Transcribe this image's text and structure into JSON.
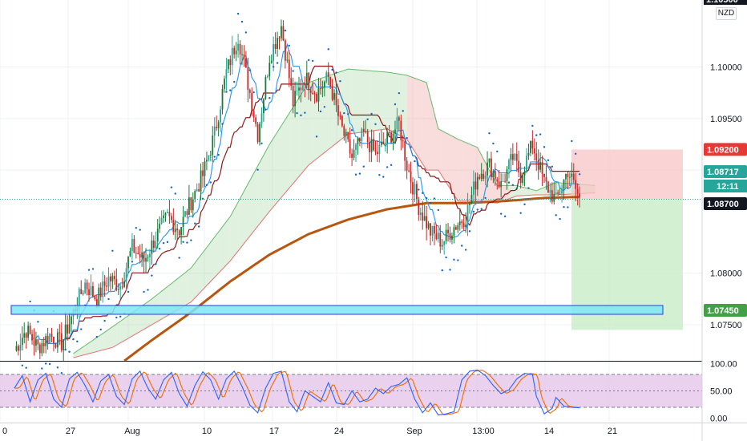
{
  "currency_badge": "NZD",
  "colors": {
    "up_candle": "#26a69a",
    "up_candle_dark": "#1b7a3a",
    "down_candle": "#c62828",
    "ema200": "#b8560f",
    "psar": "#1565c0",
    "tenkan": "#2196f3",
    "kijun": "#8b1a1a",
    "kumo_bull": "#a5d6a7",
    "kumo_bear": "#ef9a9a",
    "support_zone": "#7fe6f5",
    "stop_zone": "#f8c6c6",
    "target_zone": "#c8ecc8",
    "stoch_fill": "#e1bee7",
    "stoch_k": "#2962ff",
    "stoch_d": "#ef6c00"
  },
  "price_axis": {
    "ticks": [
      "1.10000",
      "1.09500",
      "1.09000",
      "1.08000",
      "1.07500"
    ],
    "tick_values": [
      1.1,
      1.095,
      1.09,
      1.08,
      1.075
    ],
    "top_partial_label": "1.10500",
    "labels": {
      "stop": {
        "text": "1.09200",
        "value": 1.092,
        "color": "#e53935"
      },
      "last": {
        "text": "1.08717",
        "value": 1.08717,
        "color": "#26a69a"
      },
      "countdown": {
        "text": "12:11"
      },
      "entry": {
        "text": "1.08700",
        "value": 1.087,
        "color": "#131722"
      },
      "target": {
        "text": "1.07450",
        "value": 1.0745,
        "color": "#43a047"
      }
    }
  },
  "osc_axis": {
    "ticks": [
      "100.00",
      "50.00",
      "0.00"
    ],
    "tick_values": [
      100,
      50,
      0
    ]
  },
  "time_axis": {
    "labels": [
      "0",
      "27",
      "Aug",
      "10",
      "17",
      "24",
      "Sep",
      "13:00",
      "14",
      "21"
    ]
  },
  "chart_data": {
    "type": "candlestick",
    "title": "",
    "symbol_currency": "NZD",
    "ylim": [
      1.0715,
      1.1065
    ],
    "x_labels": [
      "0",
      "27",
      "Aug",
      "10",
      "17",
      "24",
      "Sep",
      "13:00",
      "14",
      "21"
    ],
    "candles_note": "4-hour style OHLC candles, generated to match the visible trend",
    "price_path": [
      [
        0,
        1.0725
      ],
      [
        6,
        1.0745
      ],
      [
        12,
        1.0728
      ],
      [
        18,
        1.074
      ],
      [
        24,
        1.0732
      ],
      [
        30,
        1.0762
      ],
      [
        36,
        1.079
      ],
      [
        42,
        1.0775
      ],
      [
        48,
        1.0795
      ],
      [
        54,
        1.0788
      ],
      [
        60,
        1.0825
      ],
      [
        66,
        1.0812
      ],
      [
        72,
        1.0835
      ],
      [
        78,
        1.0855
      ],
      [
        84,
        1.0842
      ],
      [
        90,
        1.087
      ],
      [
        96,
        1.0895
      ],
      [
        102,
        1.0935
      ],
      [
        108,
        1.0995
      ],
      [
        114,
        1.103
      ],
      [
        120,
        1.0975
      ],
      [
        124,
        1.0935
      ],
      [
        130,
        1.101
      ],
      [
        136,
        1.104
      ],
      [
        142,
        1.0965
      ],
      [
        148,
        1.099
      ],
      [
        154,
        1.0975
      ],
      [
        160,
        1.099
      ],
      [
        166,
        1.0945
      ],
      [
        172,
        1.0912
      ],
      [
        178,
        1.0935
      ],
      [
        184,
        1.0915
      ],
      [
        190,
        1.093
      ],
      [
        196,
        1.0945
      ],
      [
        200,
        1.0905
      ],
      [
        206,
        1.0865
      ],
      [
        212,
        1.084
      ],
      [
        218,
        1.083
      ],
      [
        224,
        1.0845
      ],
      [
        230,
        1.0855
      ],
      [
        236,
        1.0895
      ],
      [
        242,
        1.0905
      ],
      [
        248,
        1.0885
      ],
      [
        254,
        1.0912
      ],
      [
        258,
        1.0895
      ],
      [
        264,
        1.0925
      ],
      [
        270,
        1.0888
      ],
      [
        276,
        1.087
      ],
      [
        282,
        1.09
      ],
      [
        288,
        1.0872
      ]
    ],
    "ema200": [
      [
        56,
        1.0715
      ],
      [
        70,
        1.0735
      ],
      [
        90,
        1.0762
      ],
      [
        110,
        1.0792
      ],
      [
        130,
        1.0818
      ],
      [
        150,
        1.0838
      ],
      [
        170,
        1.0852
      ],
      [
        190,
        1.0862
      ],
      [
        210,
        1.0868
      ],
      [
        230,
        1.0868
      ],
      [
        250,
        1.087
      ],
      [
        270,
        1.0873
      ],
      [
        288,
        1.0874
      ]
    ],
    "kumo_upper": [
      [
        30,
        1.0722
      ],
      [
        50,
        1.0748
      ],
      [
        70,
        1.0775
      ],
      [
        90,
        1.0805
      ],
      [
        110,
        1.0855
      ],
      [
        130,
        1.0925
      ],
      [
        150,
        1.0985
      ],
      [
        170,
        1.0998
      ],
      [
        190,
        1.0995
      ],
      [
        200,
        1.0992
      ],
      [
        210,
        1.0985
      ],
      [
        216,
        1.094
      ],
      [
        226,
        1.093
      ],
      [
        236,
        1.0922
      ],
      [
        246,
        1.0885
      ],
      [
        256,
        1.0885
      ],
      [
        266,
        1.088
      ],
      [
        276,
        1.0888
      ],
      [
        296,
        1.0885
      ]
    ],
    "kumo_lower": [
      [
        30,
        1.0718
      ],
      [
        50,
        1.0728
      ],
      [
        70,
        1.075
      ],
      [
        90,
        1.0772
      ],
      [
        110,
        1.0812
      ],
      [
        130,
        1.086
      ],
      [
        150,
        1.0905
      ],
      [
        170,
        1.0935
      ],
      [
        190,
        1.094
      ],
      [
        200,
        1.093
      ],
      [
        210,
        1.09
      ],
      [
        216,
        1.09
      ],
      [
        226,
        1.087
      ],
      [
        236,
        1.087
      ],
      [
        246,
        1.0868
      ],
      [
        256,
        1.0875
      ],
      [
        266,
        1.0876
      ],
      [
        276,
        1.0876
      ],
      [
        296,
        1.0878
      ]
    ],
    "stoch_k": [
      [
        0,
        55
      ],
      [
        4,
        78
      ],
      [
        8,
        30
      ],
      [
        12,
        70
      ],
      [
        16,
        82
      ],
      [
        20,
        35
      ],
      [
        24,
        20
      ],
      [
        28,
        72
      ],
      [
        32,
        84
      ],
      [
        36,
        60
      ],
      [
        40,
        30
      ],
      [
        44,
        68
      ],
      [
        48,
        80
      ],
      [
        52,
        40
      ],
      [
        56,
        25
      ],
      [
        60,
        72
      ],
      [
        64,
        86
      ],
      [
        68,
        55
      ],
      [
        72,
        35
      ],
      [
        76,
        70
      ],
      [
        80,
        84
      ],
      [
        84,
        45
      ],
      [
        88,
        22
      ],
      [
        92,
        60
      ],
      [
        96,
        85
      ],
      [
        100,
        70
      ],
      [
        104,
        35
      ],
      [
        108,
        72
      ],
      [
        112,
        86
      ],
      [
        116,
        58
      ],
      [
        120,
        24
      ],
      [
        124,
        10
      ],
      [
        128,
        55
      ],
      [
        132,
        82
      ],
      [
        136,
        86
      ],
      [
        140,
        30
      ],
      [
        144,
        12
      ],
      [
        148,
        50
      ],
      [
        152,
        40
      ],
      [
        156,
        30
      ],
      [
        160,
        65
      ],
      [
        164,
        28
      ],
      [
        168,
        25
      ],
      [
        172,
        50
      ],
      [
        176,
        30
      ],
      [
        180,
        35
      ],
      [
        184,
        55
      ],
      [
        188,
        45
      ],
      [
        192,
        58
      ],
      [
        196,
        62
      ],
      [
        200,
        74
      ],
      [
        204,
        35
      ],
      [
        208,
        10
      ],
      [
        212,
        28
      ],
      [
        216,
        6
      ],
      [
        220,
        8
      ],
      [
        224,
        12
      ],
      [
        228,
        70
      ],
      [
        232,
        86
      ],
      [
        236,
        88
      ],
      [
        240,
        78
      ],
      [
        244,
        60
      ],
      [
        248,
        45
      ],
      [
        252,
        52
      ],
      [
        256,
        72
      ],
      [
        260,
        82
      ],
      [
        264,
        80
      ],
      [
        266,
        40
      ],
      [
        270,
        8
      ],
      [
        274,
        18
      ],
      [
        276,
        38
      ],
      [
        280,
        22
      ],
      [
        284,
        20
      ],
      [
        288,
        19
      ]
    ],
    "target_zone": {
      "from": 1.0872,
      "to": 1.0745
    },
    "stop_zone": {
      "from": 1.0872,
      "to": 1.092
    },
    "support_zone": {
      "from": 1.0743,
      "to": 1.0753
    }
  }
}
